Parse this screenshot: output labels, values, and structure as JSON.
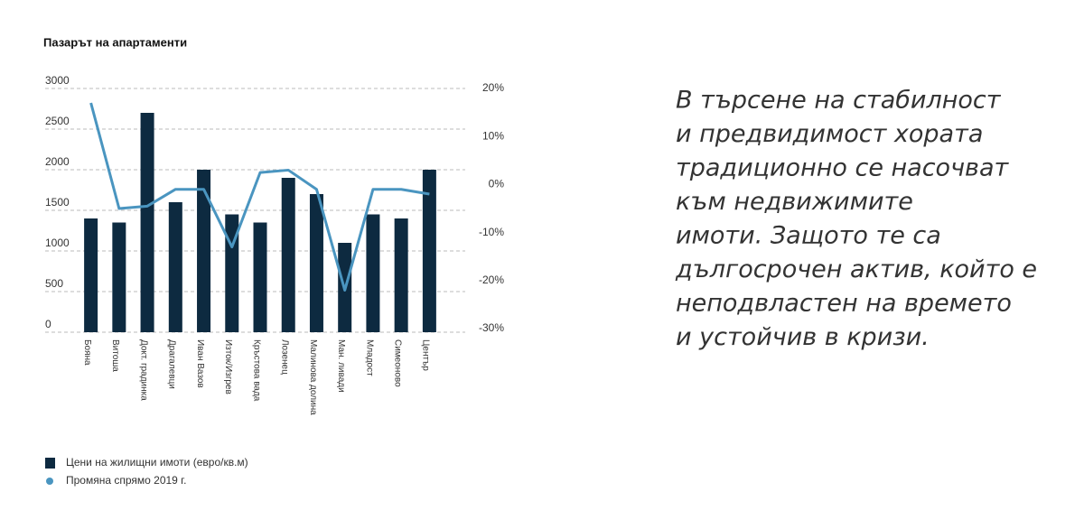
{
  "chart_data": {
    "type": "bar-line",
    "title": "Пазарът на апартаменти",
    "categories": [
      "Бояна",
      "Витоша",
      "Докт. градинка",
      "Драгалевци",
      "Иван Вазов",
      "Изток/Изгрев",
      "Кръстова вада",
      "Лозенец",
      "Малинова долина",
      "Ман. ливади",
      "Младост",
      "Симеоново",
      "Център"
    ],
    "series": [
      {
        "name": "Цени на жилищни имоти (евро/кв.м)",
        "type": "bar",
        "color": "#0d2a40",
        "values": [
          1400,
          1350,
          2700,
          1600,
          2000,
          1450,
          1350,
          1900,
          1700,
          1100,
          1450,
          1400,
          2000
        ]
      },
      {
        "name": "Промяна спрямо 2019 г.",
        "type": "line",
        "axis": "y2",
        "color": "#4a95c0",
        "values": [
          17,
          -5,
          -4.5,
          -1,
          -1,
          -13,
          2.5,
          3,
          -1,
          -22,
          -1,
          -1,
          -2
        ]
      }
    ],
    "ylim": [
      0,
      3000
    ],
    "yticks": [
      0,
      500,
      1000,
      1500,
      2000,
      2500,
      3000
    ],
    "y2lim": [
      -30,
      20
    ],
    "y2ticks": [
      {
        "value": -30,
        "label": "-30%"
      },
      {
        "value": -20,
        "label": "-20%"
      },
      {
        "value": -10,
        "label": "-10%"
      },
      {
        "value": 0,
        "label": "0%"
      },
      {
        "value": 10,
        "label": "10%"
      },
      {
        "value": 20,
        "label": "20%"
      }
    ],
    "grid": true
  },
  "quote": {
    "lines": [
      "В търсене на стабилност",
      "и предвидимост хората",
      "традиционно се насочват",
      "към недвижимите",
      "имоти. Защото те са",
      "дългосрочен актив, който е",
      "неподвластен на времето",
      "и устойчив в кризи."
    ],
    "color": "#2f8dc6"
  }
}
